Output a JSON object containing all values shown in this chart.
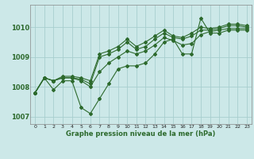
{
  "xlabel": "Graphe pression niveau de la mer (hPa)",
  "x": [
    0,
    1,
    2,
    3,
    4,
    5,
    6,
    7,
    8,
    9,
    10,
    11,
    12,
    13,
    14,
    15,
    16,
    17,
    18,
    19,
    20,
    21,
    22,
    23
  ],
  "line1": [
    1007.8,
    1008.3,
    1007.9,
    1008.2,
    1008.2,
    1007.3,
    1007.1,
    1007.6,
    1008.1,
    1008.6,
    1008.7,
    1008.7,
    1008.8,
    1009.1,
    1009.5,
    1009.6,
    1009.1,
    1009.1,
    1010.3,
    1009.8,
    1009.8,
    1009.9,
    1009.9,
    1009.9
  ],
  "line2": [
    1007.8,
    1008.3,
    1008.2,
    1008.3,
    1008.3,
    1008.2,
    1008.0,
    1008.5,
    1008.8,
    1009.0,
    1009.2,
    1009.1,
    1009.2,
    1009.4,
    1009.65,
    1009.55,
    1009.4,
    1009.45,
    1009.75,
    1009.85,
    1009.9,
    1009.95,
    1009.95,
    1009.95
  ],
  "line3": [
    1007.8,
    1008.3,
    1008.2,
    1008.3,
    1008.3,
    1008.25,
    1008.1,
    1009.0,
    1009.1,
    1009.25,
    1009.5,
    1009.25,
    1009.35,
    1009.6,
    1009.8,
    1009.65,
    1009.6,
    1009.7,
    1009.9,
    1009.9,
    1009.95,
    1010.05,
    1010.05,
    1010.0
  ],
  "line4": [
    1007.8,
    1008.3,
    1008.2,
    1008.35,
    1008.35,
    1008.3,
    1008.2,
    1009.1,
    1009.2,
    1009.35,
    1009.6,
    1009.35,
    1009.5,
    1009.7,
    1009.9,
    1009.7,
    1009.65,
    1009.8,
    1010.0,
    1009.95,
    1010.0,
    1010.1,
    1010.1,
    1010.05
  ],
  "line_color": "#2d6a2d",
  "bg_color": "#cce8e8",
  "grid_color": "#a8cece",
  "ylim": [
    1006.75,
    1010.75
  ],
  "yticks": [
    1007,
    1008,
    1009,
    1010
  ],
  "xlim": [
    -0.5,
    23.5
  ]
}
